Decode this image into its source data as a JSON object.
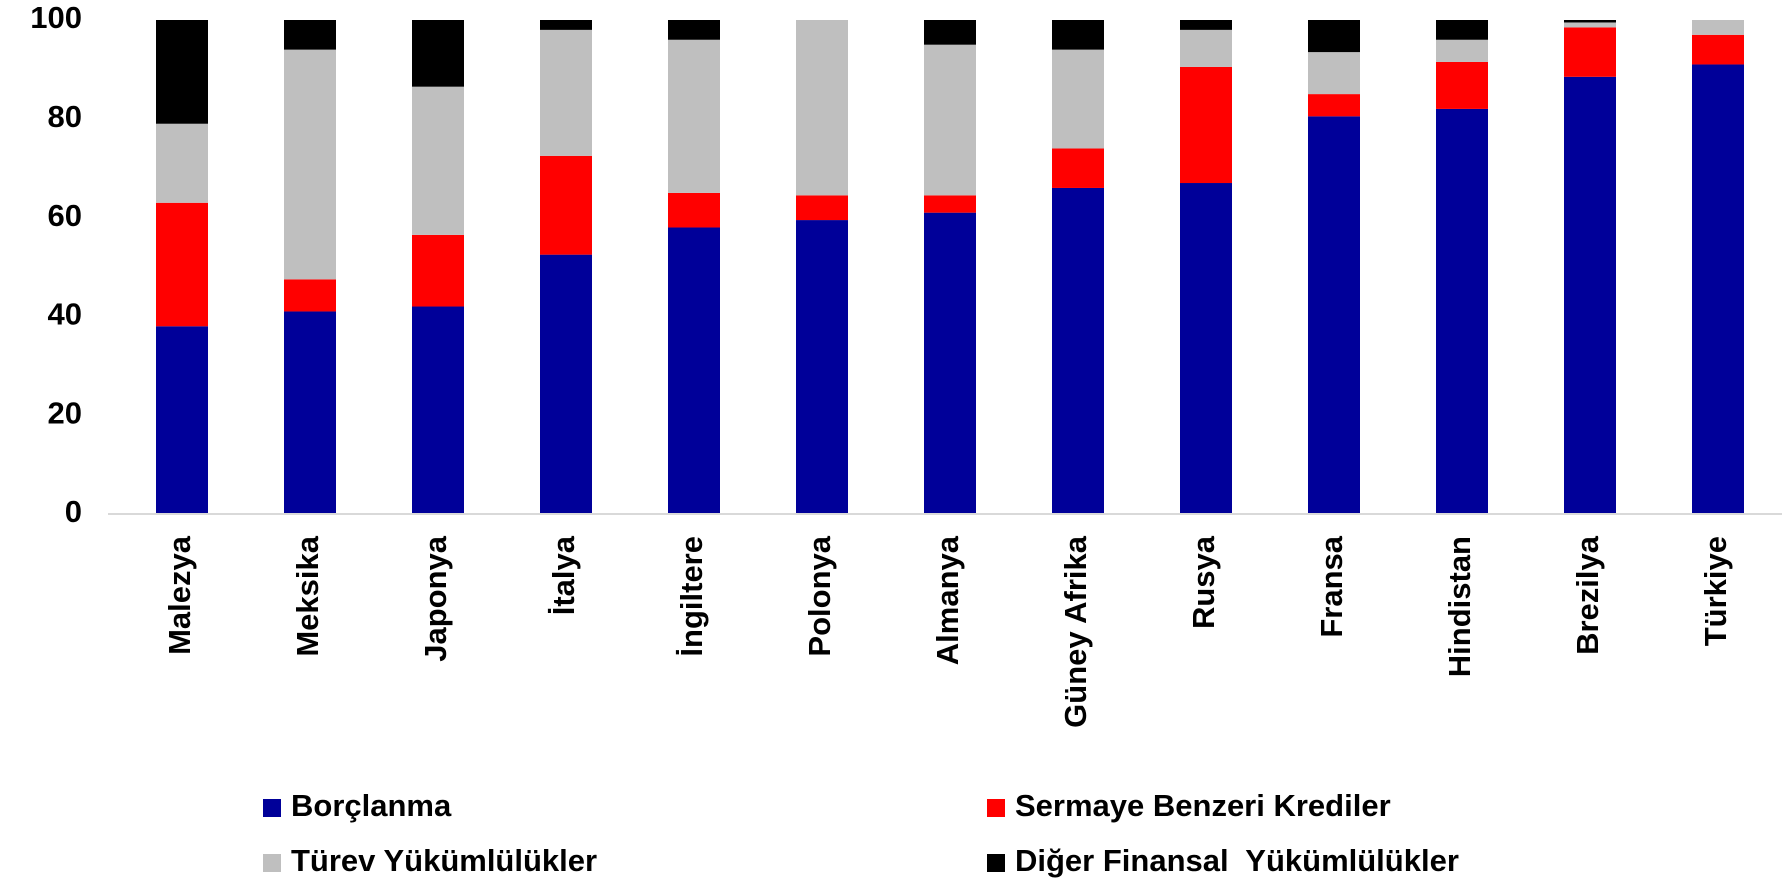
{
  "chart_data": {
    "type": "stacked_bar",
    "categories": [
      "Malezya",
      "Meksika",
      "Japonya",
      "İtalya",
      "İngiltere",
      "Polonya",
      "Almanya",
      "Güney Afrika",
      "Rusya",
      "Fransa",
      "Hindistan",
      "Brezilya",
      "Türkiye"
    ],
    "series": [
      {
        "name": "Borçlanma",
        "color": "#000099",
        "values": [
          38,
          41,
          42,
          52.5,
          58,
          59.5,
          61,
          66,
          67,
          80.5,
          82,
          88.5,
          91
        ]
      },
      {
        "name": "Sermaye Benzeri Krediler",
        "color": "#ff0000",
        "values": [
          25,
          6.5,
          14.5,
          20,
          7,
          5,
          3.5,
          8,
          23.5,
          4.5,
          9.5,
          10,
          6
        ]
      },
      {
        "name": "Türev Yükümlülükler",
        "color": "#bfbfbf",
        "values": [
          16,
          46.5,
          30,
          25.5,
          31,
          35.5,
          30.5,
          20,
          7.5,
          8.5,
          4.5,
          1,
          3
        ]
      },
      {
        "name": "Diğer Finansal  Yükümlülükler",
        "color": "#000000",
        "values": [
          21,
          6,
          13.5,
          2,
          4,
          0,
          5,
          6,
          2,
          6.5,
          4,
          0.5,
          0
        ]
      }
    ],
    "ylim": [
      0,
      100
    ],
    "yticks": [
      0,
      20,
      40,
      60,
      80,
      100
    ],
    "grid": false,
    "legend": "bottom"
  }
}
